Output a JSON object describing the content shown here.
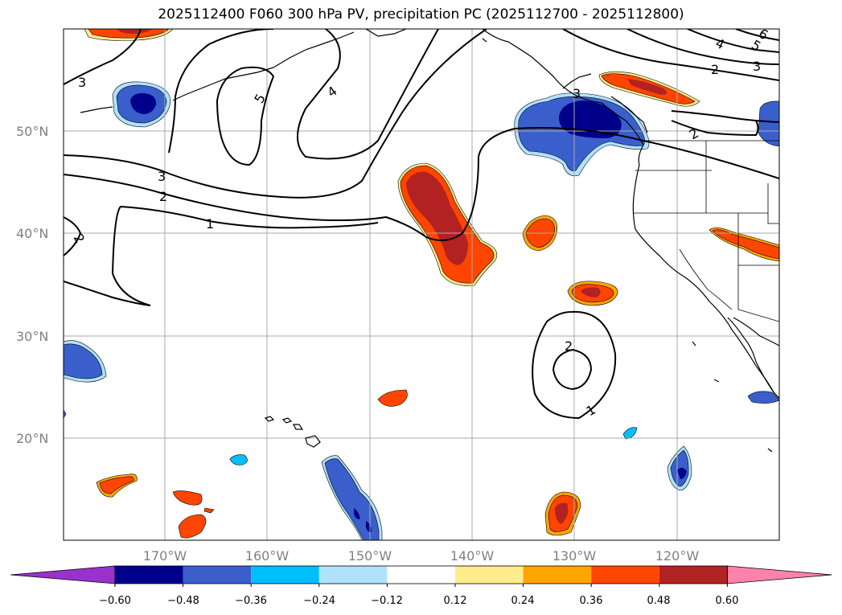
{
  "title": "2025112400 F060 300 hPa PV, precipitation PC (2025112700 - 2025112800)",
  "map": {
    "lat_labels": [
      "50°N",
      "40°N",
      "30°N",
      "20°N"
    ],
    "lon_labels": [
      "170°W",
      "160°W",
      "150°W",
      "140°W",
      "130°W",
      "120°W"
    ],
    "lat_range": [
      10,
      60
    ],
    "lon_range": [
      -180,
      -110
    ]
  },
  "contour_labels": [
    "3",
    "5",
    "4",
    "3",
    "2",
    "1",
    "2",
    "4",
    "3",
    "2",
    "6",
    "5",
    "3",
    "2",
    "1",
    "2"
  ],
  "colorbar": {
    "ticks": [
      "−0.60",
      "−0.48",
      "−0.36",
      "−0.24",
      "−0.12",
      "0.12",
      "0.24",
      "0.36",
      "0.48",
      "0.60"
    ],
    "colors": [
      "#9932cc",
      "#00008b",
      "#3a5fcd",
      "#00bfff",
      "#b0e2ff",
      "#ffffff",
      "#ffec8b",
      "#ffa500",
      "#ff4500",
      "#b22222",
      "#ff82ab"
    ],
    "extend": "both"
  }
}
